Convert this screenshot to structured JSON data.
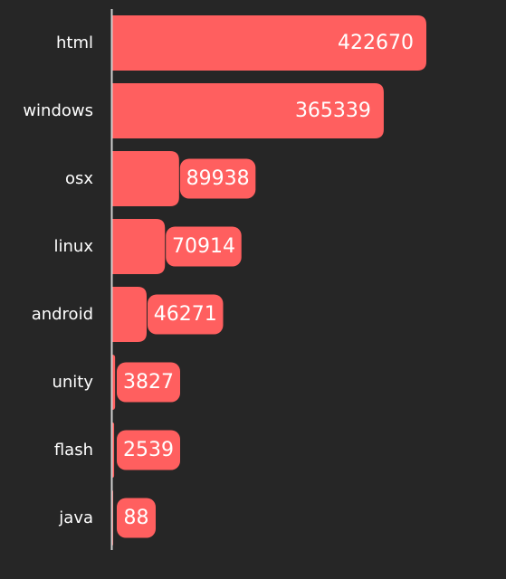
{
  "chart_data": {
    "type": "bar",
    "orientation": "horizontal",
    "categories": [
      "html",
      "windows",
      "osx",
      "linux",
      "android",
      "unity",
      "flash",
      "java"
    ],
    "values": [
      422670,
      365339,
      89938,
      70914,
      46271,
      3827,
      2539,
      88
    ],
    "title": "",
    "xlabel": "",
    "ylabel": "",
    "xlim": [
      0,
      422670
    ],
    "grid": false,
    "legend": "none",
    "bar_color": "#ff5f5f",
    "axis_color": "#cfcfcf",
    "label_color": "#ffffff",
    "background": "#262626"
  }
}
